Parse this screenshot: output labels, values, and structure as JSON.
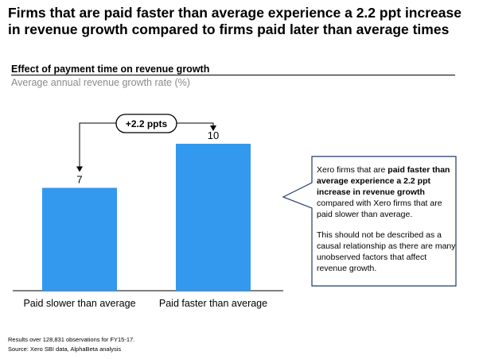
{
  "headline": "Firms that are paid faster than average experience a 2.2 ppt increase in revenue growth compared to firms paid later than average times",
  "chart_data": {
    "type": "bar",
    "title": "Effect of payment time on revenue growth",
    "ylabel": "Average annual revenue growth rate (%)",
    "categories": [
      "Paid slower than average",
      "Paid faster than average"
    ],
    "values": [
      7,
      10
    ],
    "data_labels": [
      "7",
      "10"
    ],
    "ylim": [
      0,
      10.5
    ],
    "grid": false,
    "bar_color": "#3399ee",
    "annotation": "+2.2 ppts"
  },
  "callout": {
    "p1_before": "Xero firms that are ",
    "p1_bold": "paid faster than average experience a 2.2 ppt increase in revenue growth",
    "p1_after": " compared with Xero firms that are paid slower than average.",
    "p2": "This should not be described as a causal relationship as there are many unobserved factors that affect revenue growth.",
    "border_color": "#1f3a6e"
  },
  "footnotes": {
    "note": "Results over 128,831 observations for FY15-17.",
    "source": "Source: Xero SBI data, AlphaBeta analysis"
  }
}
